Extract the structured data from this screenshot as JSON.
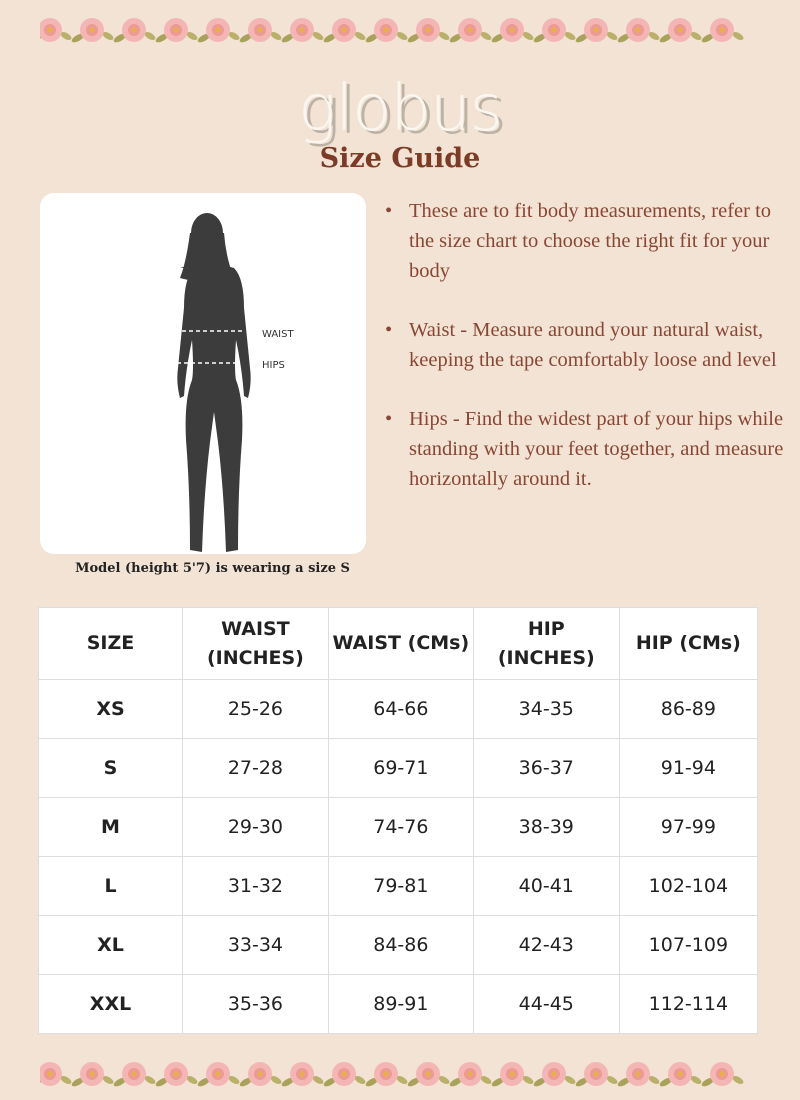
{
  "brand": "globus",
  "title": "Size Guide",
  "figure": {
    "waist_label": "WAIST",
    "hips_label": "HIPS"
  },
  "caption": "Model (height 5'7) is wearing a size S",
  "bullets": [
    "These are to fit body measurements, refer to the size chart to choose the right fit for your body",
    "Waist - Measure around your natural waist, keeping the tape comfortably loose and level",
    "Hips - Find the widest part of your hips while standing with your feet together, and measure horizontally around it."
  ],
  "table": {
    "headers": [
      "SIZE",
      "WAIST (INCHES)",
      "WAIST (CMs)",
      "HIP (INCHES)",
      "HIP (CMs)"
    ],
    "rows": [
      [
        "XS",
        "25-26",
        "64-66",
        "34-35",
        "86-89"
      ],
      [
        "S",
        "27-28",
        "69-71",
        "36-37",
        "91-94"
      ],
      [
        "M",
        "29-30",
        "74-76",
        "38-39",
        "97-99"
      ],
      [
        "L",
        "31-32",
        "79-81",
        "40-41",
        "102-104"
      ],
      [
        "XL",
        "33-34",
        "84-86",
        "42-43",
        "107-109"
      ],
      [
        "XXL",
        "35-36",
        "89-91",
        "44-45",
        "112-114"
      ]
    ]
  },
  "colors": {
    "background": "#f2e3d4",
    "accent": "#7b3b26",
    "text": "#8a4634"
  }
}
